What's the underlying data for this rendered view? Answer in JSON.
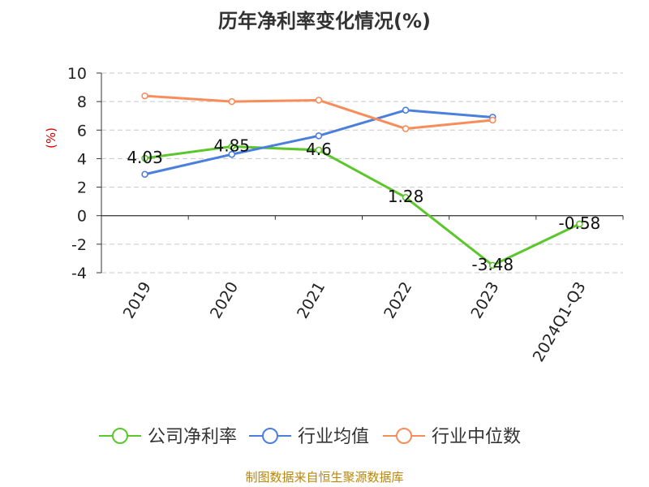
{
  "chart_data": {
    "type": "line",
    "title": "历年净利率变化情况(%)",
    "ylabel": "(%)",
    "categories": [
      "2019",
      "2020",
      "2021",
      "2022",
      "2023",
      "2024Q1-Q3"
    ],
    "ylim": [
      -4,
      10
    ],
    "yticks": [
      -4,
      -2,
      0,
      2,
      4,
      6,
      8,
      10
    ],
    "grid": true,
    "legend_position": "bottom",
    "series": [
      {
        "name": "公司净利率",
        "color": "#5cc72c",
        "values": [
          4.03,
          4.85,
          4.6,
          1.28,
          -3.48,
          -0.58
        ],
        "labels": [
          "4.03",
          "4.85",
          "4.6",
          "1.28",
          "-3.48",
          "-0.58"
        ]
      },
      {
        "name": "行业均值",
        "color": "#4a7fdd",
        "values": [
          2.9,
          4.3,
          5.6,
          7.4,
          6.9,
          null
        ]
      },
      {
        "name": "行业中位数",
        "color": "#f78d5a",
        "values": [
          8.4,
          8.0,
          8.1,
          6.1,
          6.7,
          null
        ]
      }
    ]
  },
  "footer": {
    "source": "制图数据来自恒生聚源数据库"
  }
}
